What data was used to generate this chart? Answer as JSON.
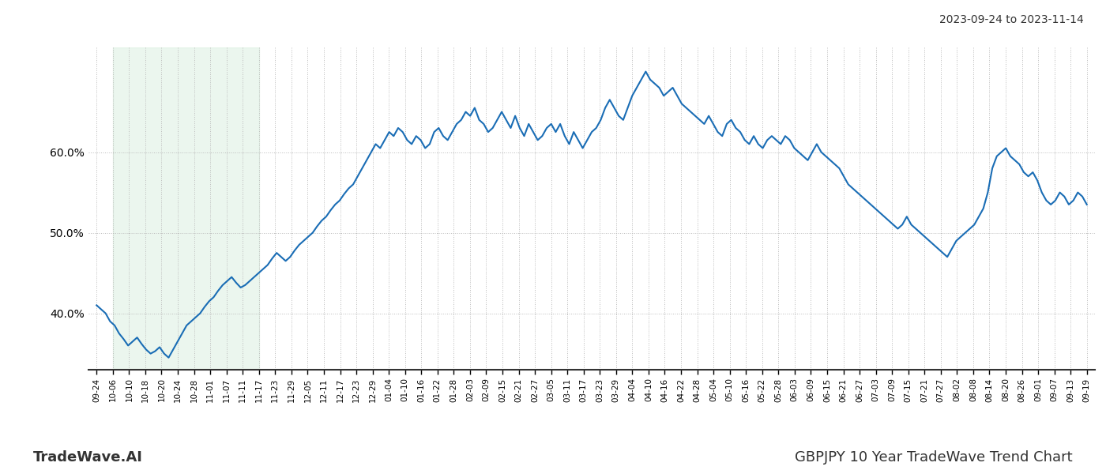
{
  "title_top_right": "2023-09-24 to 2023-11-14",
  "title_bottom_left": "TradeWave.AI",
  "title_bottom_right": "GBPJPY 10 Year TradeWave Trend Chart",
  "background_color": "#ffffff",
  "line_color": "#1a6db5",
  "line_width": 1.5,
  "shade_color": "#d4edda",
  "shade_alpha": 0.45,
  "ylim": [
    33,
    73
  ],
  "yticks": [
    40.0,
    50.0,
    60.0
  ],
  "grid_color": "#bbbbbb",
  "grid_linestyle": ":",
  "x_labels": [
    "09-24",
    "10-06",
    "10-10",
    "10-18",
    "10-20",
    "10-24",
    "10-28",
    "11-01",
    "11-07",
    "11-11",
    "11-17",
    "11-23",
    "11-29",
    "12-05",
    "12-11",
    "12-17",
    "12-23",
    "12-29",
    "01-04",
    "01-10",
    "01-16",
    "01-22",
    "01-28",
    "02-03",
    "02-09",
    "02-15",
    "02-21",
    "02-27",
    "03-05",
    "03-11",
    "03-17",
    "03-23",
    "03-29",
    "04-04",
    "04-10",
    "04-16",
    "04-22",
    "04-28",
    "05-04",
    "05-10",
    "05-16",
    "05-22",
    "05-28",
    "06-03",
    "06-09",
    "06-15",
    "06-21",
    "06-27",
    "07-03",
    "07-09",
    "07-15",
    "07-21",
    "07-27",
    "08-02",
    "08-08",
    "08-14",
    "08-20",
    "08-26",
    "09-01",
    "09-07",
    "09-13",
    "09-19"
  ],
  "shade_label_start": "10-06",
  "shade_label_end": "11-17",
  "y_values": [
    41.0,
    40.5,
    40.0,
    39.0,
    38.5,
    37.5,
    36.8,
    36.0,
    36.5,
    37.0,
    36.2,
    35.5,
    35.0,
    35.3,
    35.8,
    35.0,
    34.5,
    35.5,
    36.5,
    37.5,
    38.5,
    39.0,
    39.5,
    40.0,
    40.8,
    41.5,
    42.0,
    42.8,
    43.5,
    44.0,
    44.5,
    43.8,
    43.2,
    43.5,
    44.0,
    44.5,
    45.0,
    45.5,
    46.0,
    46.8,
    47.5,
    47.0,
    46.5,
    47.0,
    47.8,
    48.5,
    49.0,
    49.5,
    50.0,
    50.8,
    51.5,
    52.0,
    52.8,
    53.5,
    54.0,
    54.8,
    55.5,
    56.0,
    57.0,
    58.0,
    59.0,
    60.0,
    61.0,
    60.5,
    61.5,
    62.5,
    62.0,
    63.0,
    62.5,
    61.5,
    61.0,
    62.0,
    61.5,
    60.5,
    61.0,
    62.5,
    63.0,
    62.0,
    61.5,
    62.5,
    63.5,
    64.0,
    65.0,
    64.5,
    65.5,
    64.0,
    63.5,
    62.5,
    63.0,
    64.0,
    65.0,
    64.0,
    63.0,
    64.5,
    63.0,
    62.0,
    63.5,
    62.5,
    61.5,
    62.0,
    63.0,
    63.5,
    62.5,
    63.5,
    62.0,
    61.0,
    62.5,
    61.5,
    60.5,
    61.5,
    62.5,
    63.0,
    64.0,
    65.5,
    66.5,
    65.5,
    64.5,
    64.0,
    65.5,
    67.0,
    68.0,
    69.0,
    70.0,
    69.0,
    68.5,
    68.0,
    67.0,
    67.5,
    68.0,
    67.0,
    66.0,
    65.5,
    65.0,
    64.5,
    64.0,
    63.5,
    64.5,
    63.5,
    62.5,
    62.0,
    63.5,
    64.0,
    63.0,
    62.5,
    61.5,
    61.0,
    62.0,
    61.0,
    60.5,
    61.5,
    62.0,
    61.5,
    61.0,
    62.0,
    61.5,
    60.5,
    60.0,
    59.5,
    59.0,
    60.0,
    61.0,
    60.0,
    59.5,
    59.0,
    58.5,
    58.0,
    57.0,
    56.0,
    55.5,
    55.0,
    54.5,
    54.0,
    53.5,
    53.0,
    52.5,
    52.0,
    51.5,
    51.0,
    50.5,
    51.0,
    52.0,
    51.0,
    50.5,
    50.0,
    49.5,
    49.0,
    48.5,
    48.0,
    47.5,
    47.0,
    48.0,
    49.0,
    49.5,
    50.0,
    50.5,
    51.0,
    52.0,
    53.0,
    55.0,
    58.0,
    59.5,
    60.0,
    60.5,
    59.5,
    59.0,
    58.5,
    57.5,
    57.0,
    57.5,
    56.5,
    55.0,
    54.0,
    53.5,
    54.0,
    55.0,
    54.5,
    53.5,
    54.0,
    55.0,
    54.5,
    53.5
  ]
}
